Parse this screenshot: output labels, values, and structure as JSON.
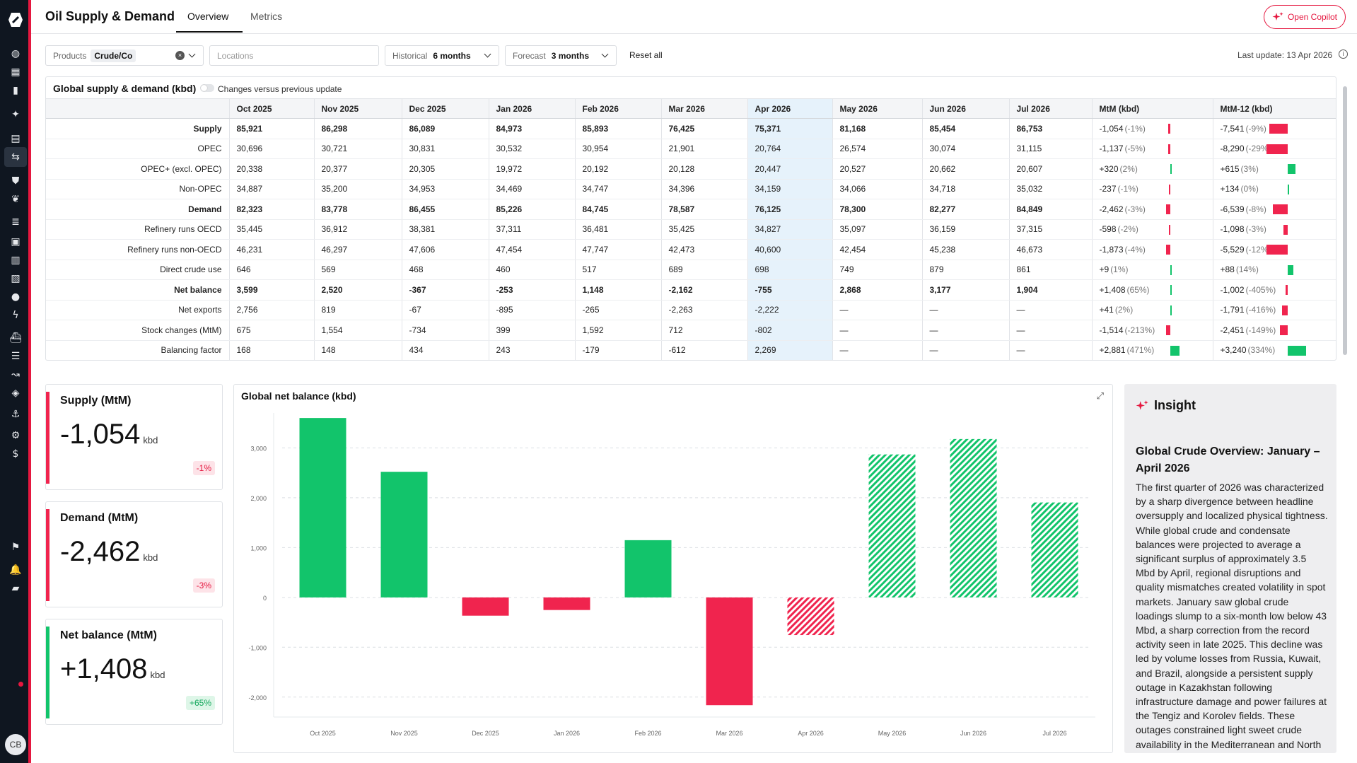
{
  "sidebar": {
    "icons": [
      "logo-icon",
      "globe-icon",
      "dashboard-icon",
      "bookmark-icon",
      "sparkle-icon",
      "news-icon",
      "supply-demand-icon",
      "shield-icon",
      "leaf-icon",
      "balance-icon",
      "oil-icon",
      "bar-chart-icon",
      "lng-icon",
      "drop-icon",
      "bolt-icon",
      "ship-icon",
      "list-icon",
      "route-icon",
      "inspect-icon",
      "anchor-icon",
      "settings-icon",
      "dollar-icon",
      "flag-icon",
      "bell-icon",
      "chat-icon"
    ],
    "avatar_initials": "CB"
  },
  "header": {
    "title": "Oil Supply & Demand",
    "tabs": [
      {
        "label": "Overview",
        "active": true
      },
      {
        "label": "Metrics",
        "active": false
      }
    ],
    "copilot_label": "Open Copilot"
  },
  "filters": {
    "products_label": "Products",
    "products_value": "Crude/Co",
    "locations_placeholder": "Locations",
    "historical_label": "Historical",
    "historical_value": "6 months",
    "forecast_label": "Forecast",
    "forecast_value": "3 months",
    "reset_label": "Reset all",
    "last_update": "Last update: 13 Apr 2026"
  },
  "table": {
    "title": "Global supply & demand (kbd)",
    "toggle_label": "Changes versus previous update",
    "columns": [
      "Oct 2025",
      "Nov 2025",
      "Dec 2025",
      "Jan 2026",
      "Feb 2026",
      "Mar 2026",
      "Apr 2026",
      "May 2026",
      "Jun 2026",
      "Jul 2026",
      "MtM (kbd)",
      "MtM-12 (kbd)"
    ],
    "rows": [
      {
        "label": "Supply",
        "bold": true,
        "vals": [
          "85,921",
          "86,298",
          "86,089",
          "84,973",
          "85,893",
          "76,425",
          "75,371",
          "81,168",
          "85,454",
          "86,753"
        ],
        "mtm": "-1,054",
        "mtm_pct": "(-1%)",
        "mtm_bar": -0.15,
        "mtm12": "-7,541",
        "mtm12_pct": "(-9%)",
        "mtm12_bar": -0.85
      },
      {
        "label": "OPEC",
        "bold": false,
        "vals": [
          "30,696",
          "30,721",
          "30,831",
          "30,532",
          "30,954",
          "21,901",
          "20,764",
          "26,574",
          "30,074",
          "31,115"
        ],
        "mtm": "-1,137",
        "mtm_pct": "(-5%)",
        "mtm_bar": -0.15,
        "mtm12": "-8,290",
        "mtm12_pct": "(-29%)",
        "mtm12_bar": -1.0
      },
      {
        "label": "OPEC+ (excl. OPEC)",
        "bold": false,
        "vals": [
          "20,338",
          "20,377",
          "20,305",
          "19,972",
          "20,192",
          "20,128",
          "20,447",
          "20,527",
          "20,662",
          "20,607"
        ],
        "mtm": "+320",
        "mtm_pct": "(2%)",
        "mtm_bar": 0.12,
        "mtm12": "+615",
        "mtm12_pct": "(3%)",
        "mtm12_bar": 0.35
      },
      {
        "label": "Non-OPEC",
        "bold": false,
        "vals": [
          "34,887",
          "35,200",
          "34,953",
          "34,469",
          "34,747",
          "34,396",
          "34,159",
          "34,066",
          "34,718",
          "35,032"
        ],
        "mtm": "-237",
        "mtm_pct": "(-1%)",
        "mtm_bar": -0.1,
        "mtm12": "+134",
        "mtm12_pct": "(0%)",
        "mtm12_bar": 0.07
      },
      {
        "label": "Demand",
        "bold": true,
        "group": true,
        "vals": [
          "82,323",
          "83,778",
          "86,455",
          "85,226",
          "84,745",
          "78,587",
          "76,125",
          "78,300",
          "82,277",
          "84,849"
        ],
        "mtm": "-2,462",
        "mtm_pct": "(-3%)",
        "mtm_bar": -0.35,
        "mtm12": "-6,539",
        "mtm12_pct": "(-8%)",
        "mtm12_bar": -0.7
      },
      {
        "label": "Refinery runs OECD",
        "bold": false,
        "vals": [
          "35,445",
          "36,912",
          "38,381",
          "37,311",
          "36,481",
          "35,425",
          "34,827",
          "35,097",
          "36,159",
          "37,315"
        ],
        "mtm": "-598",
        "mtm_pct": "(-2%)",
        "mtm_bar": -0.12,
        "mtm12": "-1,098",
        "mtm12_pct": "(-3%)",
        "mtm12_bar": -0.2
      },
      {
        "label": "Refinery runs non-OECD",
        "bold": false,
        "vals": [
          "46,231",
          "46,297",
          "47,606",
          "47,454",
          "47,747",
          "42,473",
          "40,600",
          "42,454",
          "45,238",
          "46,673"
        ],
        "mtm": "-1,873",
        "mtm_pct": "(-4%)",
        "mtm_bar": -0.35,
        "mtm12": "-5,529",
        "mtm12_pct": "(-12%)",
        "mtm12_bar": -1.0
      },
      {
        "label": "Direct crude use",
        "bold": false,
        "vals": [
          "646",
          "569",
          "468",
          "460",
          "517",
          "689",
          "698",
          "749",
          "879",
          "861"
        ],
        "mtm": "+9",
        "mtm_pct": "(1%)",
        "mtm_bar": 0.05,
        "mtm12": "+88",
        "mtm12_pct": "(14%)",
        "mtm12_bar": 0.25
      },
      {
        "label": "Net balance",
        "bold": true,
        "group": true,
        "vals": [
          "3,599",
          "2,520",
          "-367",
          "-253",
          "1,148",
          "-2,162",
          "-755",
          "2,868",
          "3,177",
          "1,904"
        ],
        "mtm": "+1,408",
        "mtm_pct": "(65%)",
        "mtm_bar": 0.12,
        "mtm12": "-1,002",
        "mtm12_pct": "(-405%)",
        "mtm12_bar": -0.1
      },
      {
        "label": "Net exports",
        "bold": false,
        "vals": [
          "2,756",
          "819",
          "-67",
          "-895",
          "-265",
          "-2,263",
          "-2,222",
          "—",
          "—",
          "—"
        ],
        "mtm": "+41",
        "mtm_pct": "(2%)",
        "mtm_bar": 0.05,
        "mtm12": "-1,791",
        "mtm12_pct": "(-416%)",
        "mtm12_bar": -0.25
      },
      {
        "label": "Stock changes (MtM)",
        "bold": false,
        "vals": [
          "675",
          "1,554",
          "-734",
          "399",
          "1,592",
          "712",
          "-802",
          "—",
          "—",
          "—"
        ],
        "mtm": "-1,514",
        "mtm_pct": "(-213%)",
        "mtm_bar": -0.35,
        "mtm12": "-2,451",
        "mtm12_pct": "(-149%)",
        "mtm12_bar": -0.35
      },
      {
        "label": "Balancing factor",
        "bold": false,
        "vals": [
          "168",
          "148",
          "434",
          "243",
          "-179",
          "-612",
          "2,269",
          "—",
          "—",
          "—"
        ],
        "mtm": "+2,881",
        "mtm_pct": "(471%)",
        "mtm_bar": 0.7,
        "mtm12": "+3,240",
        "mtm12_pct": "(334%)",
        "mtm12_bar": 0.85
      }
    ]
  },
  "kpis": [
    {
      "title": "Supply (MtM)",
      "value": "-1,054",
      "unit": "kbd",
      "badge": "-1%",
      "trend": "neg"
    },
    {
      "title": "Demand (MtM)",
      "value": "-2,462",
      "unit": "kbd",
      "badge": "-3%",
      "trend": "neg"
    },
    {
      "title": "Net balance (MtM)",
      "value": "+1,408",
      "unit": "kbd",
      "badge": "+65%",
      "trend": "pos"
    }
  ],
  "chart_data": {
    "type": "bar",
    "title": "Global net balance (kbd)",
    "categories": [
      "Oct 2025",
      "Nov 2025",
      "Dec 2025",
      "Jan 2026",
      "Feb 2026",
      "Mar 2026",
      "Apr 2026",
      "May 2026",
      "Jun 2026",
      "Jul 2026"
    ],
    "values": [
      3599,
      2520,
      -367,
      -253,
      1148,
      -2162,
      -755,
      2868,
      3177,
      1904
    ],
    "forecast_flags": [
      false,
      false,
      false,
      false,
      false,
      false,
      true,
      true,
      true,
      true
    ],
    "ylim": [
      -2400,
      3700
    ],
    "yticks": [
      3000,
      2000,
      1000,
      0,
      -1000,
      -2000
    ],
    "ytick_labels": [
      "3,000",
      "2,000",
      "1,000",
      "0",
      "-1,000",
      "-2,000"
    ],
    "grid": true,
    "colors": {
      "positive": "#12c46b",
      "negative": "#f0244e"
    }
  },
  "insight": {
    "heading": "Insight",
    "title": "Global Crude Overview: January – April 2026",
    "body": "The first quarter of 2026 was characterized by a sharp divergence between headline oversupply and localized physical tightness. While global crude and condensate balances were projected to average a significant surplus of approximately 3.5 Mbd by April, regional disruptions and quality mismatches created volatility in spot markets. January saw global crude loadings slump to a six-month low below 43 Mbd, a sharp correction from the record activity seen in late 2025. This decline was led by volume losses from Russia, Kuwait, and Brazil, alongside a persistent supply outage in Kazakhstan following infrastructure damage and power failures at the Tengiz and Korolev fields. These outages constrained light sweet crude availability in the Mediterranean and North European markets."
  }
}
